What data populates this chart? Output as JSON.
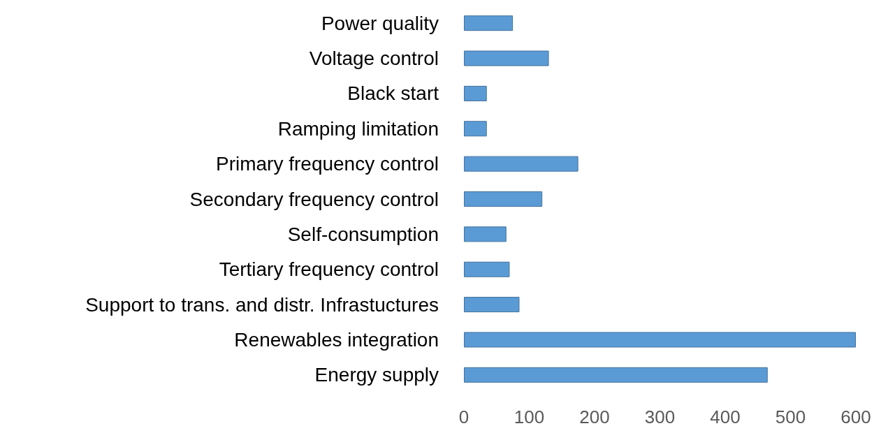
{
  "chart_data": {
    "type": "bar",
    "orientation": "horizontal",
    "categories": [
      "Power quality",
      "Voltage control",
      "Black start",
      "Ramping limitation",
      "Primary frequency control",
      "Secondary frequency control",
      "Self-consumption",
      "Tertiary frequency control",
      "Support to trans. and distr. Infrastuctures",
      "Renewables integration",
      "Energy supply"
    ],
    "values": [
      75,
      130,
      35,
      35,
      175,
      120,
      65,
      70,
      85,
      600,
      465
    ],
    "color": "#5b9bd5",
    "xlim": [
      0,
      600
    ],
    "xticks": [
      0,
      100,
      200,
      300,
      400,
      500,
      600
    ],
    "grid": false
  }
}
